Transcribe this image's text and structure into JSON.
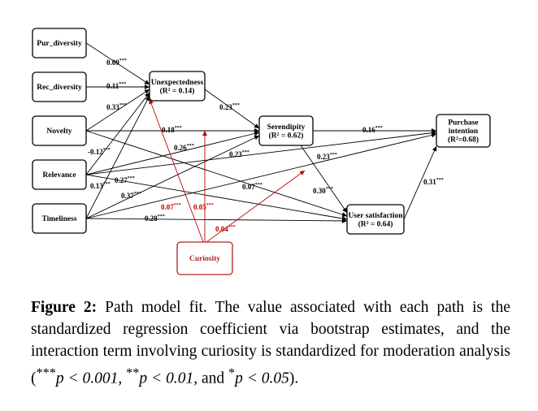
{
  "colors": {
    "text": "#000000",
    "moderator": "#c00000"
  },
  "diagram": {
    "nodes": {
      "pur_diversity": {
        "lines": [
          "Pur_diversity"
        ]
      },
      "rec_diversity": {
        "lines": [
          "Rec_diversity"
        ]
      },
      "novelty": {
        "lines": [
          "Novelty"
        ]
      },
      "relevance": {
        "lines": [
          "Relevance"
        ]
      },
      "timeliness": {
        "lines": [
          "Timeliness"
        ]
      },
      "unexpectedness": {
        "lines": [
          "Unexpectedness",
          "(R² = 0.14)"
        ]
      },
      "serendipity": {
        "lines": [
          "Serendipity",
          "(R² = 0.62)"
        ]
      },
      "purchase_intention": {
        "lines": [
          "Purchase",
          "intention",
          "(R²=0.68)"
        ]
      },
      "user_satisfaction": {
        "lines": [
          "User satisfaction",
          "(R² = 0.64)"
        ]
      },
      "curiosity": {
        "lines": [
          "Curiosity"
        ]
      }
    },
    "coefficients": {
      "pur_to_unexp": {
        "value": "0.09",
        "stars": "***"
      },
      "rec_to_unexp": {
        "value": "0.11",
        "stars": "***"
      },
      "nov_to_unexp": {
        "value": "0.33",
        "stars": "***"
      },
      "rel_to_unexp": {
        "value": "-0.12",
        "stars": "***"
      },
      "time_to_unexp": {
        "value": "0.13",
        "stars": "***"
      },
      "unexp_to_ser": {
        "value": "0.23",
        "stars": "***"
      },
      "nov_to_ser": {
        "value": "0.18",
        "stars": "***"
      },
      "rel_to_ser": {
        "value": "0.26",
        "stars": "***"
      },
      "time_to_ser": {
        "value": "0.23",
        "stars": "***"
      },
      "ser_to_pur": {
        "value": "0.16",
        "stars": "***"
      },
      "rel_to_pur": {
        "value": "0.23",
        "stars": "***"
      },
      "ser_to_sat": {
        "value": "0.30",
        "stars": "***"
      },
      "nov_to_sat": {
        "value": "0.07",
        "stars": "***"
      },
      "rel_to_sat": {
        "value": "0.27",
        "stars": "***"
      },
      "time_to_pur": {
        "value": "0.37",
        "stars": "***"
      },
      "time_to_sat": {
        "value": "0.28",
        "stars": "***"
      },
      "sat_to_pur": {
        "value": "0.31",
        "stars": "***"
      },
      "cur_mod_unexp": {
        "value": "0.07",
        "stars": "***"
      },
      "cur_mod_ser": {
        "value": "0.05",
        "stars": "***"
      },
      "cur_mod_sat": {
        "value": "0.04",
        "stars": "***"
      }
    }
  },
  "caption": {
    "label": "Figure 2:",
    "body_before": " Path model fit. The value associated with each path is the standardized regression coefficient via bootstrap estimates, and the interaction term involving curiosity is standardized for moderation analysis (",
    "sig1_stars": "***",
    "sig1_text": "p < 0.001, ",
    "sig2_stars": "**",
    "sig2_text": "p < 0.01,",
    "sig3_joiner": " and ",
    "sig3_stars": "*",
    "sig3_text": "p < 0.05",
    "body_after": ")."
  }
}
